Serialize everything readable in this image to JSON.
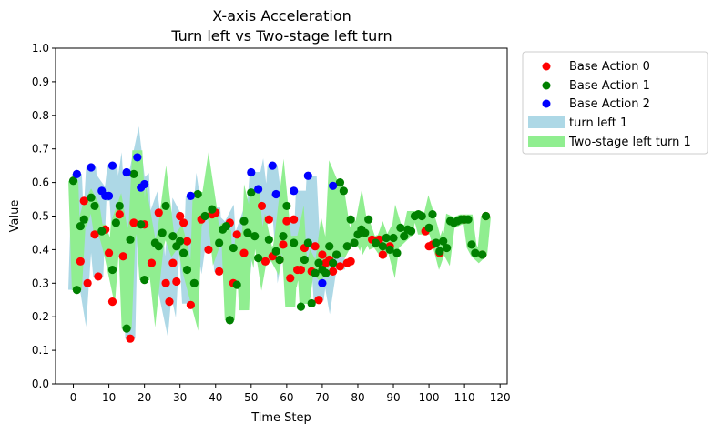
{
  "chart_data": {
    "type": "scatter",
    "title": "X-axis Acceleration",
    "subtitle": "Turn left vs Two-stage left turn",
    "xlabel": "Time Step",
    "ylabel": "Value",
    "xlim": [
      -5,
      122
    ],
    "ylim": [
      0.0,
      1.0
    ],
    "xticks": [
      0,
      10,
      20,
      30,
      40,
      50,
      60,
      70,
      80,
      90,
      100,
      110,
      120
    ],
    "yticks": [
      0.0,
      0.1,
      0.2,
      0.3,
      0.4,
      0.5,
      0.6,
      0.7,
      0.8,
      0.9,
      1.0
    ],
    "grid": false,
    "legend_position": "outside-right",
    "legend": [
      {
        "label": "Base Action 0",
        "kind": "marker",
        "color": "#ff0000"
      },
      {
        "label": "Base Action 1",
        "kind": "marker",
        "color": "#008000"
      },
      {
        "label": "Base Action 2",
        "kind": "marker",
        "color": "#0000ff"
      },
      {
        "label": "turn left 1",
        "kind": "band",
        "color": "#add8e6"
      },
      {
        "label": "Two-stage left turn 1",
        "kind": "band",
        "color": "#90ee90"
      }
    ],
    "series": [
      {
        "name": "turn left 1",
        "color": "#add8e6",
        "x": [
          0,
          1,
          2,
          3,
          4,
          5,
          6,
          7,
          8,
          9,
          10,
          11,
          12,
          13,
          14,
          15,
          16,
          17,
          18,
          19,
          20,
          21,
          22,
          23,
          24,
          25,
          26,
          27,
          28,
          29,
          30,
          31,
          32,
          33,
          34,
          35,
          36,
          37,
          38,
          39,
          40,
          41,
          42,
          43,
          44,
          45,
          46,
          47,
          48,
          49,
          50,
          51,
          52,
          53,
          54,
          55,
          56,
          57,
          58,
          59,
          60,
          61,
          62,
          63,
          64,
          65,
          66,
          67,
          68,
          69,
          70,
          71,
          72,
          73,
          74,
          75
        ],
        "y": [
          0.28,
          0.625,
          0.365,
          0.3,
          0.455,
          0.645,
          0.44,
          0.32,
          0.575,
          0.56,
          0.56,
          0.65,
          0.48,
          0.55,
          0.38,
          0.63,
          0.135,
          0.625,
          0.675,
          0.585,
          0.595,
          0.36,
          0.48,
          0.51,
          0.43,
          0.29,
          0.24,
          0.36,
          0.31,
          0.5,
          0.48,
          0.43,
          0.24,
          0.56,
          0.37,
          0.5,
          0.43,
          0.505,
          0.4,
          0.51,
          0.51,
          0.335,
          0.47,
          0.46,
          0.48,
          0.295,
          0.43,
          0.45,
          0.48,
          0.39,
          0.49,
          0.63,
          0.53,
          0.58,
          0.49,
          0.5,
          0.65,
          0.565,
          0.42,
          0.48,
          0.48,
          0.315,
          0.49,
          0.34,
          0.575,
          0.34,
          0.41,
          0.62,
          0.41,
          0.25,
          0.335,
          0.36,
          0.3,
          0.37,
          0.59,
          0.34
        ]
      },
      {
        "name": "Two-stage left turn 1",
        "color": "#90ee90",
        "x": [
          0,
          1,
          2,
          3,
          4,
          5,
          6,
          7,
          8,
          9,
          10,
          11,
          12,
          13,
          14,
          15,
          16,
          17,
          18,
          19,
          20,
          21,
          22,
          23,
          24,
          25,
          26,
          27,
          28,
          29,
          30,
          31,
          32,
          33,
          34,
          35,
          36,
          37,
          38,
          39,
          40,
          41,
          42,
          43,
          44,
          45,
          46,
          47,
          48,
          49,
          50,
          51,
          52,
          53,
          54,
          55,
          56,
          57,
          58,
          59,
          60,
          61,
          62,
          63,
          64,
          65,
          66,
          67,
          68,
          69,
          70,
          71,
          72,
          73,
          74,
          75,
          76,
          77,
          78,
          79,
          80,
          81,
          82,
          83,
          84,
          85,
          86,
          87,
          88,
          89,
          90,
          91,
          92,
          93,
          94,
          95,
          96,
          97,
          98,
          99,
          100,
          101,
          102,
          103,
          104,
          105,
          106,
          107,
          108,
          109,
          110,
          111,
          112,
          113,
          114,
          115,
          116
        ],
        "y": [
          0.605,
          0.28,
          0.47,
          0.49,
          0.53,
          0.55,
          0.53,
          0.46,
          0.46,
          0.43,
          0.39,
          0.34,
          0.48,
          0.51,
          0.45,
          0.165,
          0.43,
          0.48,
          0.695,
          0.48,
          0.31,
          0.47,
          0.41,
          0.31,
          0.41,
          0.45,
          0.53,
          0.44,
          0.41,
          0.425,
          0.44,
          0.4,
          0.34,
          0.3,
          0.26,
          0.57,
          0.5,
          0.52,
          0.59,
          0.52,
          0.42,
          0.45,
          0.46,
          0.45,
          0.19,
          0.41,
          0.295,
          0.45,
          0.22,
          0.485,
          0.44,
          0.57,
          0.44,
          0.37,
          0.43,
          0.38,
          0.39,
          0.37,
          0.44,
          0.53,
          0.42,
          0.23,
          0.44,
          0.37,
          0.42,
          0.24,
          0.32,
          0.36,
          0.34,
          0.33,
          0.41,
          0.36,
          0.38,
          0.6,
          0.575,
          0.38,
          0.49,
          0.42,
          0.44,
          0.46,
          0.44,
          0.495,
          0.43,
          0.45,
          0.42,
          0.425,
          0.41,
          0.44,
          0.41,
          0.43,
          0.39,
          0.465,
          0.43,
          0.44,
          0.45,
          0.5,
          0.5,
          0.5,
          0.46,
          0.46,
          0.505,
          0.47,
          0.43,
          0.39,
          0.42,
          0.4,
          0.485,
          0.48,
          0.485,
          0.49,
          0.49,
          0.49,
          0.41,
          0.39,
          0.38,
          0.39,
          0.5
        ]
      }
    ],
    "points": {
      "Base Action 0": {
        "color": "#ff0000",
        "x": [
          2,
          3,
          4,
          6,
          7,
          9,
          10,
          11,
          13,
          14,
          16,
          17,
          20,
          22,
          24,
          26,
          27,
          28,
          29,
          30,
          31,
          32,
          33,
          36,
          38,
          39,
          40,
          41,
          44,
          45,
          46,
          48,
          53,
          54,
          55,
          56,
          58,
          59,
          60,
          61,
          62,
          63,
          64,
          65,
          67,
          68,
          69,
          70,
          71,
          72,
          73,
          75,
          77,
          78,
          84,
          86,
          87,
          89,
          99,
          100,
          101,
          103,
          110,
          115,
          116
        ],
        "y": [
          0.365,
          0.545,
          0.3,
          0.445,
          0.32,
          0.46,
          0.39,
          0.245,
          0.505,
          0.38,
          0.135,
          0.48,
          0.475,
          0.36,
          0.51,
          0.3,
          0.245,
          0.36,
          0.305,
          0.5,
          0.48,
          0.425,
          0.235,
          0.49,
          0.4,
          0.505,
          0.51,
          0.335,
          0.48,
          0.3,
          0.445,
          0.39,
          0.53,
          0.365,
          0.49,
          0.38,
          0.37,
          0.415,
          0.485,
          0.315,
          0.49,
          0.34,
          0.34,
          0.405,
          0.335,
          0.41,
          0.25,
          0.385,
          0.36,
          0.37,
          0.335,
          0.35,
          0.36,
          0.365,
          0.43,
          0.43,
          0.385,
          0.41,
          0.455,
          0.41,
          0.415,
          0.39,
          0.49,
          0.385,
          0.5
        ]
      },
      "Base Action 1": {
        "color": "#008000",
        "x": [
          0,
          1,
          2,
          3,
          5,
          6,
          8,
          11,
          12,
          13,
          15,
          16,
          17,
          19,
          20,
          23,
          24,
          25,
          26,
          28,
          29,
          30,
          31,
          32,
          34,
          35,
          37,
          39,
          41,
          42,
          43,
          44,
          45,
          46,
          48,
          49,
          50,
          51,
          52,
          55,
          57,
          58,
          59,
          60,
          62,
          64,
          65,
          66,
          67,
          68,
          69,
          70,
          71,
          72,
          73,
          74,
          75,
          76,
          77,
          78,
          79,
          80,
          81,
          82,
          83,
          85,
          87,
          88,
          89,
          90,
          91,
          92,
          93,
          94,
          95,
          96,
          97,
          98,
          100,
          101,
          102,
          103,
          104,
          105,
          106,
          107,
          108,
          109,
          110,
          111,
          112,
          113,
          115,
          116
        ],
        "y": [
          0.605,
          0.28,
          0.47,
          0.49,
          0.555,
          0.53,
          0.455,
          0.34,
          0.48,
          0.53,
          0.165,
          0.43,
          0.625,
          0.475,
          0.31,
          0.42,
          0.41,
          0.45,
          0.53,
          0.44,
          0.41,
          0.425,
          0.39,
          0.34,
          0.3,
          0.565,
          0.5,
          0.52,
          0.42,
          0.46,
          0.47,
          0.19,
          0.405,
          0.295,
          0.485,
          0.45,
          0.57,
          0.44,
          0.375,
          0.43,
          0.395,
          0.37,
          0.44,
          0.53,
          0.42,
          0.23,
          0.37,
          0.42,
          0.24,
          0.33,
          0.36,
          0.34,
          0.33,
          0.41,
          0.36,
          0.385,
          0.6,
          0.575,
          0.41,
          0.49,
          0.42,
          0.445,
          0.46,
          0.45,
          0.49,
          0.42,
          0.41,
          0.435,
          0.4,
          0.435,
          0.39,
          0.465,
          0.44,
          0.46,
          0.455,
          0.5,
          0.505,
          0.5,
          0.465,
          0.505,
          0.42,
          0.395,
          0.425,
          0.405,
          0.485,
          0.48,
          0.485,
          0.49,
          0.49,
          0.49,
          0.415,
          0.39,
          0.385,
          0.5
        ]
      },
      "Base Action 2": {
        "color": "#0000ff",
        "x": [
          1,
          5,
          8,
          9,
          10,
          11,
          15,
          18,
          19,
          20,
          33,
          50,
          52,
          56,
          57,
          62,
          66,
          70,
          73
        ],
        "y": [
          0.625,
          0.645,
          0.575,
          0.56,
          0.56,
          0.65,
          0.63,
          0.675,
          0.585,
          0.595,
          0.56,
          0.63,
          0.58,
          0.65,
          0.565,
          0.575,
          0.62,
          0.3,
          0.59
        ]
      }
    }
  }
}
